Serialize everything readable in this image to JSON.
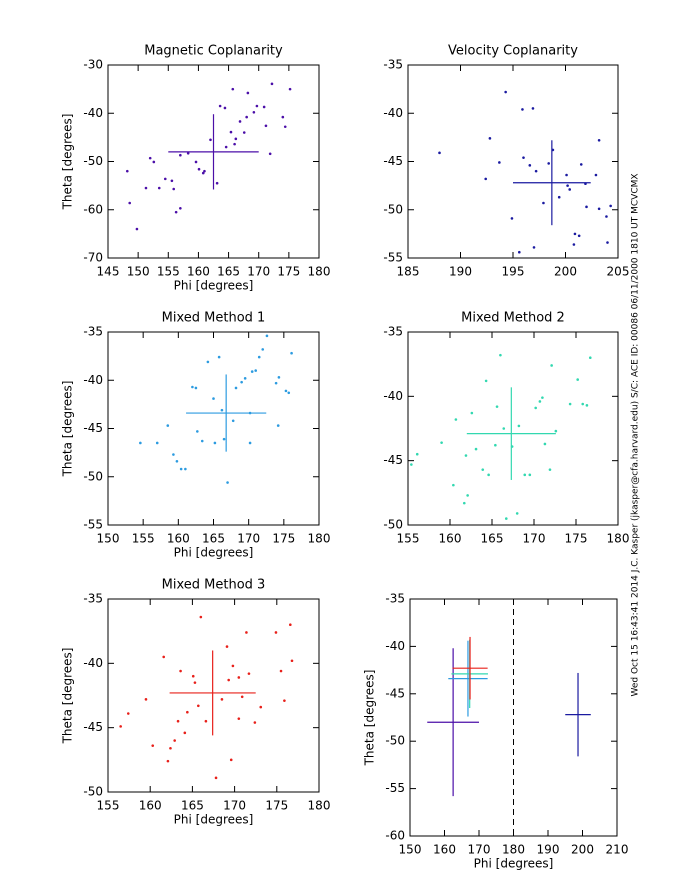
{
  "chart_data": [
    {
      "type": "scatter",
      "title": "Magnetic Coplanarity",
      "xlabel": "Phi [degrees]",
      "ylabel": "Theta [degrees]",
      "xlim": [
        145,
        180
      ],
      "xticks": [
        145,
        150,
        155,
        160,
        165,
        170,
        175,
        180
      ],
      "ylim": [
        -70,
        -30
      ],
      "yticks": [
        -70,
        -60,
        -50,
        -40,
        -30
      ],
      "color": "#4b0fa8",
      "x": [
        148.2,
        148.6,
        149.8,
        151.3,
        152,
        152.6,
        153.5,
        154.5,
        155.6,
        155.9,
        156.3,
        157,
        157,
        158.3,
        159.6,
        160.1,
        160.8,
        161,
        162,
        163.1,
        163.6,
        164.4,
        164.6,
        165.4,
        166,
        166.2,
        165.7,
        166.9,
        167.6,
        168,
        168.2,
        169.2,
        169.7,
        170.9,
        171.2,
        171.9,
        172.2,
        174,
        174.4,
        175.2
      ],
      "y": [
        -52,
        -58.6,
        -64,
        -55.5,
        -49.3,
        -50.1,
        -55.5,
        -53.6,
        -54,
        -55.7,
        -60.5,
        -59.7,
        -48.7,
        -48.3,
        -50.1,
        -51.6,
        -52.4,
        -52,
        -45.5,
        -54.5,
        -38.5,
        -38.9,
        -47,
        -43.9,
        -46.4,
        -45.3,
        -35,
        -41.7,
        -44,
        -40.8,
        -35.8,
        -39.8,
        -38.5,
        -38.7,
        -42.6,
        -48.4,
        -33.9,
        -40.8,
        -42.8,
        -35
      ],
      "crosshair": {
        "x": 162.5,
        "y": -48,
        "x_err": 7.5,
        "y_err": 7.8
      }
    },
    {
      "type": "scatter",
      "title": "Velocity Coplanarity",
      "xlabel": "",
      "ylabel": "",
      "xlim": [
        185,
        205
      ],
      "xticks": [
        185,
        190,
        195,
        200,
        205
      ],
      "ylim": [
        -55,
        -35
      ],
      "yticks": [
        -55,
        -50,
        -45,
        -40,
        -35
      ],
      "color": "#1a1aa0",
      "x": [
        188,
        194.3,
        192.8,
        192.4,
        193.7,
        194.9,
        195.6,
        195.9,
        196.9,
        197,
        196,
        196.6,
        197.2,
        197.9,
        198.4,
        198.8,
        199.4,
        200.1,
        200.2,
        200.4,
        200.8,
        201.3,
        201.5,
        201.9,
        202,
        202.9,
        203.2,
        203.2,
        203.9,
        204,
        204.3,
        200.9
      ],
      "y": [
        -44.1,
        -37.8,
        -42.6,
        -46.8,
        -45.1,
        -50.9,
        -54.4,
        -39.6,
        -39.5,
        -53.9,
        -44.6,
        -45.4,
        -46,
        -49.3,
        -45.2,
        -43.8,
        -48.7,
        -46.4,
        -47.5,
        -47.9,
        -53.6,
        -52.7,
        -45.3,
        -47.3,
        -49.7,
        -46.4,
        -42.8,
        -49.9,
        -50.7,
        -53.4,
        -49.6,
        -52.5
      ],
      "crosshair": {
        "x": 198.7,
        "y": -47.2,
        "x_err": 3.7,
        "y_err": 4.4
      }
    },
    {
      "type": "scatter",
      "title": "Mixed Method 1",
      "xlabel": "Phi [degrees]",
      "ylabel": "Theta [degrees]",
      "xlim": [
        150,
        180
      ],
      "xticks": [
        150,
        155,
        160,
        165,
        170,
        175,
        180
      ],
      "ylim": [
        -55,
        -35
      ],
      "yticks": [
        -55,
        -50,
        -45,
        -40,
        -35
      ],
      "color": "#2c9be0",
      "x": [
        154.6,
        157,
        158.5,
        159.3,
        159.8,
        160.4,
        161,
        162,
        162.5,
        162.7,
        163.4,
        164.2,
        165,
        165.2,
        165.8,
        166.2,
        166.5,
        167,
        167.8,
        168.2,
        169,
        169.5,
        170.2,
        170.2,
        170.5,
        171,
        171.5,
        172,
        172.6,
        173.9,
        174.3,
        175.3,
        175.7,
        176.1,
        174.2
      ],
      "y": [
        -46.5,
        -46.5,
        -44.7,
        -47.7,
        -48.4,
        -49.2,
        -49.2,
        -40.7,
        -40.8,
        -45.3,
        -46.3,
        -38.1,
        -41.9,
        -46.5,
        -37.6,
        -43.1,
        -46.1,
        -50.6,
        -44.2,
        -40.8,
        -40.2,
        -39.8,
        -43.4,
        -46.5,
        -39.1,
        -39,
        -37.6,
        -36.8,
        -35.4,
        -40.3,
        -39.7,
        -41.1,
        -41.3,
        -37.2,
        -44.7
      ],
      "crosshair": {
        "x": 166.8,
        "y": -43.4,
        "x_err": 5.7,
        "y_err": 4
      }
    },
    {
      "type": "scatter",
      "title": "Mixed Method 2",
      "xlabel": "",
      "ylabel": "",
      "xlim": [
        155,
        180
      ],
      "xticks": [
        155,
        160,
        165,
        170,
        175,
        180
      ],
      "ylim": [
        -50,
        -35
      ],
      "yticks": [
        -50,
        -45,
        -40,
        -35
      ],
      "color": "#32d8b0",
      "x": [
        155.4,
        156.1,
        159,
        160.4,
        160.7,
        161.7,
        162.1,
        161.9,
        162.6,
        163.1,
        163.9,
        164.3,
        164.6,
        165.4,
        165.6,
        166,
        166.4,
        166.7,
        167.4,
        168,
        168.2,
        168.9,
        169.5,
        170.2,
        170.7,
        171,
        171.3,
        171.9,
        172.1,
        172.6,
        174.3,
        175.2,
        175.8,
        176.3,
        176.7
      ],
      "y": [
        -45.3,
        -44.5,
        -43.6,
        -46.9,
        -41.8,
        -48.3,
        -47.7,
        -44.6,
        -41.3,
        -44.1,
        -45.7,
        -38.8,
        -46.1,
        -43.8,
        -40.8,
        -36.8,
        -42.5,
        -49.5,
        -43.9,
        -49.1,
        -42.3,
        -46.1,
        -46.1,
        -40.9,
        -40.4,
        -40.1,
        -43.7,
        -45.7,
        -37.6,
        -42.7,
        -40.6,
        -38.7,
        -40.6,
        -40.7,
        -37
      ],
      "crosshair": {
        "x": 167.3,
        "y": -42.9,
        "x_err": 5.3,
        "y_err": 3.6
      }
    },
    {
      "type": "scatter",
      "title": "Mixed Method 3",
      "xlabel": "Phi [degrees]",
      "ylabel": "Theta [degrees]",
      "xlim": [
        155,
        180
      ],
      "xticks": [
        155,
        160,
        165,
        170,
        175,
        180
      ],
      "ylim": [
        -50,
        -35
      ],
      "yticks": [
        -50,
        -45,
        -40,
        -35
      ],
      "color": "#e8201a",
      "x": [
        156.5,
        157.4,
        159.5,
        160.3,
        161.6,
        162.1,
        162.4,
        162.9,
        163.3,
        163.6,
        164.1,
        164.4,
        165.1,
        165.3,
        165.7,
        166,
        166.6,
        167.8,
        168.5,
        169.1,
        169.3,
        169.6,
        169.8,
        170.5,
        170.5,
        170.9,
        171.4,
        171.7,
        172.4,
        173.1,
        174.9,
        175.5,
        175.9,
        176.6,
        176.8
      ],
      "y": [
        -44.9,
        -43.9,
        -42.8,
        -46.4,
        -39.5,
        -47.6,
        -46.6,
        -46,
        -44.5,
        -40.6,
        -45.4,
        -43.8,
        -41,
        -41.5,
        -43.3,
        -36.4,
        -44.5,
        -48.9,
        -42.8,
        -38.7,
        -41.3,
        -47.5,
        -40.2,
        -41.1,
        -44.3,
        -42.6,
        -37.6,
        -40.8,
        -44.6,
        -43.4,
        -37.6,
        -40.6,
        -42.9,
        -37,
        -39.8
      ],
      "crosshair": {
        "x": 167.4,
        "y": -42.3,
        "x_err": 5.1,
        "y_err": 3.3
      }
    },
    {
      "type": "summary",
      "xlabel": "Phi [degrees]",
      "ylabel": "Theta [degrees]",
      "xlim": [
        150,
        210
      ],
      "xticks": [
        150,
        160,
        170,
        180,
        190,
        200,
        210
      ],
      "ylim": [
        -60,
        -35
      ],
      "yticks": [
        -60,
        -55,
        -50,
        -45,
        -40,
        -35
      ],
      "reference_x": 180
    }
  ],
  "annotation": "Wed Oct 15 16:43:41 2014   J.C. Kasper (jkasper@cfa.harvard.edu)   S/C: ACE ID: 00086 06/11/2000   1810 UT MCVCMX"
}
